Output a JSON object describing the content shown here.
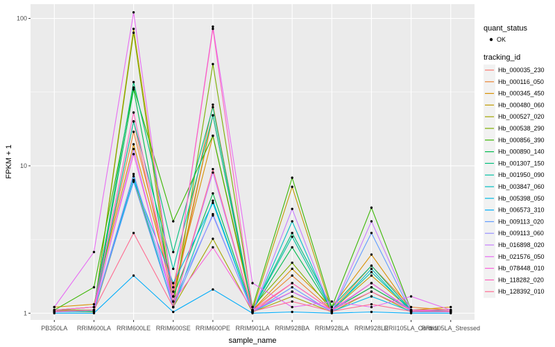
{
  "chart_data": {
    "type": "line",
    "xlabel": "sample_name",
    "ylabel": "FPKM + 1",
    "y_scale": "log10",
    "ylim": [
      0.9,
      125
    ],
    "y_ticks": [
      {
        "value": 1,
        "label": "1"
      },
      {
        "value": 10,
        "label": "10"
      },
      {
        "value": 100,
        "label": "100"
      }
    ],
    "panel_background": "#ebebeb",
    "grid": true,
    "point_color": "#000000",
    "categories": [
      "PB350LA",
      "RRIM600LA",
      "RRIM600LE",
      "RRIM600SE",
      "RRIM600PE",
      "RRIM901LA",
      "RRIM928BA",
      "RRIM928LA",
      "RRIM928LE",
      "RRII105LA_Control",
      "RRII105LA_Stressed"
    ],
    "legend": {
      "position": "right",
      "shape_title": "quant_status",
      "shape_entries": [
        "OK"
      ],
      "color_title": "tracking_id"
    },
    "series": [
      {
        "name": "Hb_000035_230",
        "color": "#F8766D",
        "values": [
          1.02,
          1.05,
          20,
          1.2,
          22,
          1.02,
          1.6,
          1.05,
          1.5,
          1.05,
          1.05
        ]
      },
      {
        "name": "Hb_000116_050",
        "color": "#EA8331",
        "values": [
          1.05,
          1.1,
          17,
          1.5,
          26,
          1.05,
          1.8,
          1.05,
          2.1,
          1.1,
          1.05
        ]
      },
      {
        "name": "Hb_000345_450",
        "color": "#D89000",
        "values": [
          1.1,
          1.15,
          14,
          1.4,
          16,
          1.05,
          2.0,
          1.1,
          2.5,
          1.05,
          1.1
        ]
      },
      {
        "name": "Hb_000480_060",
        "color": "#C09B00",
        "values": [
          1.05,
          1.05,
          85,
          1.3,
          22,
          1.05,
          7.2,
          1.05,
          1.8,
          1.05,
          1.05
        ]
      },
      {
        "name": "Hb_000527_020",
        "color": "#A3A500",
        "values": [
          1.03,
          1.02,
          8,
          1.1,
          3.2,
          1.02,
          1.3,
          1.02,
          1.4,
          1.02,
          1.03
        ]
      },
      {
        "name": "Hb_000538_290",
        "color": "#7CAE00",
        "values": [
          1.05,
          1.05,
          80,
          1.1,
          49,
          1.1,
          2.2,
          1.05,
          1.6,
          1.05,
          1.05
        ]
      },
      {
        "name": "Hb_000856_390",
        "color": "#39B600",
        "values": [
          1.05,
          1.5,
          34,
          4.2,
          16,
          1.1,
          8.3,
          1.1,
          5.2,
          1.05,
          1.05
        ]
      },
      {
        "name": "Hb_000890_140",
        "color": "#00BB4E",
        "values": [
          1.02,
          1.05,
          33,
          1.3,
          6.5,
          1.05,
          2.8,
          1.05,
          1.5,
          1.05,
          1.02
        ]
      },
      {
        "name": "Hb_001307_150",
        "color": "#00BF7D",
        "values": [
          1.05,
          1.1,
          37,
          2.6,
          25,
          1.05,
          3.5,
          1.1,
          2.1,
          1.05,
          1.05
        ]
      },
      {
        "name": "Hb_001950_090",
        "color": "#00C1A3",
        "values": [
          1.03,
          1.05,
          20,
          2.0,
          22,
          1.05,
          3.3,
          1.05,
          1.9,
          1.05,
          1.03
        ]
      },
      {
        "name": "Hb_003847_060",
        "color": "#00BFC4",
        "values": [
          1.02,
          1.03,
          8.5,
          1.1,
          5.8,
          1.02,
          4.2,
          1.03,
          2.0,
          1.02,
          1.02
        ]
      },
      {
        "name": "Hb_005398_050",
        "color": "#00B9E3",
        "values": [
          1.03,
          1.05,
          8.0,
          1.6,
          5.6,
          1.02,
          1.4,
          1.03,
          1.3,
          1.03,
          1.03
        ]
      },
      {
        "name": "Hb_006573_310",
        "color": "#00ADFA",
        "values": [
          1.0,
          1.0,
          1.8,
          1.02,
          1.45,
          1.0,
          1.02,
          1.0,
          1.02,
          1.0,
          1.0
        ]
      },
      {
        "name": "Hb_009113_020",
        "color": "#619CFF",
        "values": [
          1.02,
          1.05,
          7.8,
          1.1,
          4.7,
          1.02,
          1.5,
          1.02,
          3.5,
          1.02,
          1.02
        ]
      },
      {
        "name": "Hb_009113_060",
        "color": "#9590FF",
        "values": [
          1.03,
          1.05,
          8.8,
          1.2,
          4.6,
          1.03,
          1.4,
          1.03,
          1.6,
          1.03,
          1.03
        ]
      },
      {
        "name": "Hb_016898_020",
        "color": "#C77CFF",
        "values": [
          1.02,
          1.05,
          13,
          1.1,
          9.0,
          1.02,
          5.1,
          1.02,
          4.2,
          1.05,
          1.02
        ]
      },
      {
        "name": "Hb_021576_050",
        "color": "#E76BF3",
        "values": [
          1.1,
          2.6,
          110,
          1.3,
          88,
          1.6,
          1.1,
          1.2,
          1.1,
          1.3,
          1.05
        ]
      },
      {
        "name": "Hb_078448_010",
        "color": "#FA62DB",
        "values": [
          1.05,
          1.1,
          12,
          1.2,
          2.8,
          1.05,
          1.4,
          1.05,
          1.6,
          1.05,
          1.05
        ]
      },
      {
        "name": "Hb_118282_020",
        "color": "#FF62BC",
        "values": [
          1.05,
          1.1,
          23,
          1.3,
          85,
          1.05,
          1.6,
          1.05,
          1.4,
          1.05,
          1.05
        ]
      },
      {
        "name": "Hb_128392_010",
        "color": "#FF6C91",
        "values": [
          1.03,
          1.05,
          3.5,
          1.1,
          9.5,
          1.03,
          1.2,
          1.03,
          1.15,
          1.03,
          1.03
        ]
      }
    ]
  }
}
